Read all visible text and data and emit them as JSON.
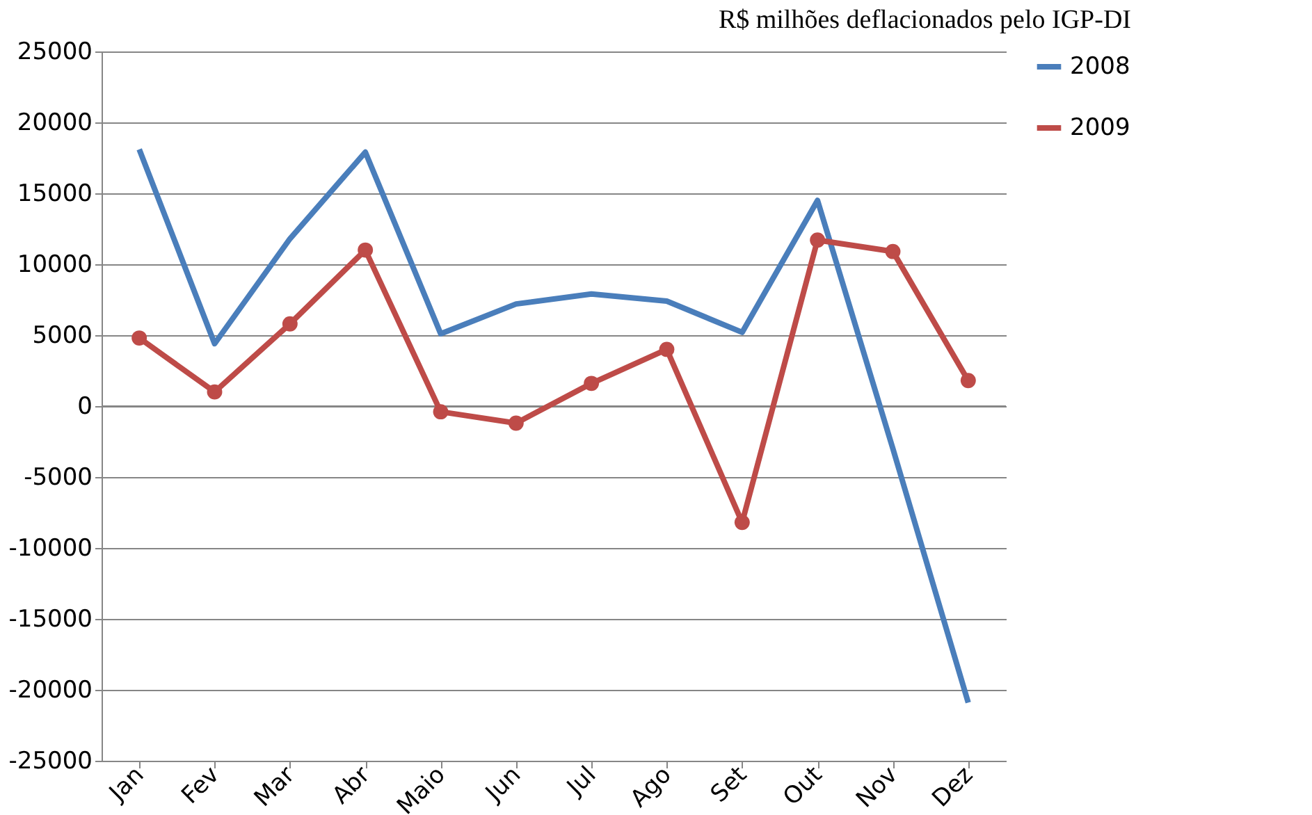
{
  "chart_data": {
    "type": "line",
    "annotations": [
      "R$ milhões deflacionados pelo IGP-DI"
    ],
    "categories": [
      "Jan",
      "Fev",
      "Mar",
      "Abr",
      "Maio",
      "Jun",
      "Jul",
      "Ago",
      "Set",
      "Out",
      "Nov",
      "Dez"
    ],
    "series": [
      {
        "name": "2008",
        "color": "#4a7ebb",
        "marker": "none",
        "values": [
          18100,
          4400,
          11800,
          17900,
          5100,
          7200,
          7900,
          7400,
          5200,
          14500,
          -3000,
          -20900
        ]
      },
      {
        "name": "2009",
        "color": "#be4b48",
        "marker": "circle",
        "values": [
          4800,
          1000,
          5800,
          11000,
          -400,
          -1200,
          1600,
          4000,
          -8200,
          11700,
          10900,
          1800
        ]
      }
    ],
    "ylim": [
      -25000,
      25000
    ],
    "yticks": [
      -25000,
      -20000,
      -15000,
      -10000,
      -5000,
      0,
      5000,
      10000,
      15000,
      20000,
      25000
    ],
    "grid": "y",
    "legend": "right"
  }
}
